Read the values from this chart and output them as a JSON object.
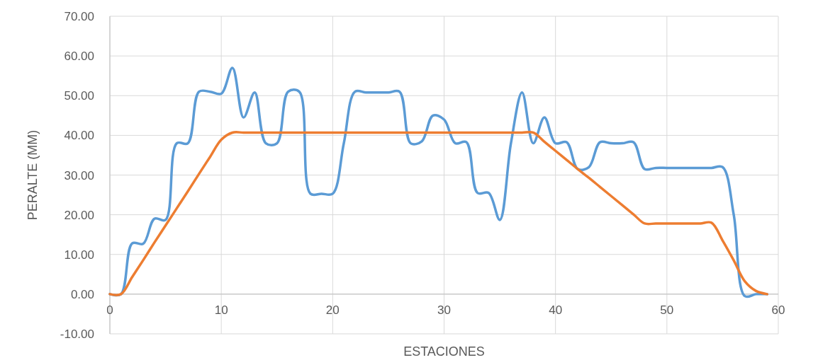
{
  "chart_data": {
    "type": "line",
    "xlabel": "ESTACIONES",
    "ylabel": "PERALTE (MM)",
    "x": [
      0,
      1,
      2,
      3,
      4,
      5,
      6,
      7,
      8,
      9,
      10,
      11,
      12,
      13,
      14,
      15,
      16,
      17,
      18,
      19,
      20,
      21,
      22,
      23,
      24,
      25,
      26,
      27,
      28,
      29,
      30,
      31,
      32,
      33,
      34,
      35,
      36,
      37,
      38,
      39,
      40,
      41,
      42,
      43,
      44,
      45,
      46,
      47,
      48,
      49,
      50,
      51,
      52,
      53,
      54,
      55,
      56,
      57,
      58,
      59
    ],
    "series": [
      {
        "color": "#5b9bd5",
        "values": [
          0,
          0,
          12.8,
          12.7,
          19,
          18.7,
          38,
          38,
          51,
          51,
          50.5,
          57,
          44.5,
          50.8,
          38,
          38,
          51,
          51,
          25.3,
          25.3,
          25.3,
          38,
          51,
          50.8,
          50.8,
          50.8,
          51,
          38,
          38.5,
          45,
          44,
          38,
          38.3,
          25.5,
          25.5,
          18.7,
          38,
          50.8,
          38,
          44.5,
          38,
          38.3,
          31.5,
          32,
          38.3,
          38,
          38,
          38.3,
          31.5,
          31.8,
          31.8,
          31.8,
          31.8,
          31.8,
          31.8,
          32,
          20,
          -0.5,
          0,
          0
        ]
      },
      {
        "color": "#ed7d31",
        "values": [
          0,
          0,
          4.3,
          8.6,
          13,
          17.3,
          21.6,
          25.9,
          30.3,
          34.6,
          38.9,
          40.7,
          40.7,
          40.7,
          40.7,
          40.7,
          40.7,
          40.7,
          40.7,
          40.7,
          40.7,
          40.7,
          40.7,
          40.7,
          40.7,
          40.7,
          40.7,
          40.7,
          40.7,
          40.7,
          40.7,
          40.7,
          40.7,
          40.7,
          40.7,
          40.7,
          40.7,
          40.7,
          40.7,
          38.4,
          36.1,
          33.8,
          31.5,
          29.3,
          27,
          24.7,
          22.4,
          20.1,
          17.8,
          17.8,
          17.8,
          17.8,
          17.8,
          17.8,
          18,
          13.5,
          8.5,
          3.2,
          0.8,
          0
        ]
      }
    ],
    "xlim": [
      0,
      60
    ],
    "xticks": [
      0,
      10,
      20,
      30,
      40,
      50,
      60
    ],
    "ylim": [
      -10,
      70
    ],
    "yticks": [
      {
        "value": -10,
        "label": "-10.00"
      },
      {
        "value": 0,
        "label": "0.00"
      },
      {
        "value": 10,
        "label": "10.00"
      },
      {
        "value": 20,
        "label": "20.00"
      },
      {
        "value": 30,
        "label": "30.00"
      },
      {
        "value": 40,
        "label": "40.00"
      },
      {
        "value": 50,
        "label": "50.00"
      },
      {
        "value": 60,
        "label": "60.00"
      },
      {
        "value": 70,
        "label": "70.00"
      }
    ],
    "grid": true,
    "marker": "none",
    "line_style": "solid"
  }
}
